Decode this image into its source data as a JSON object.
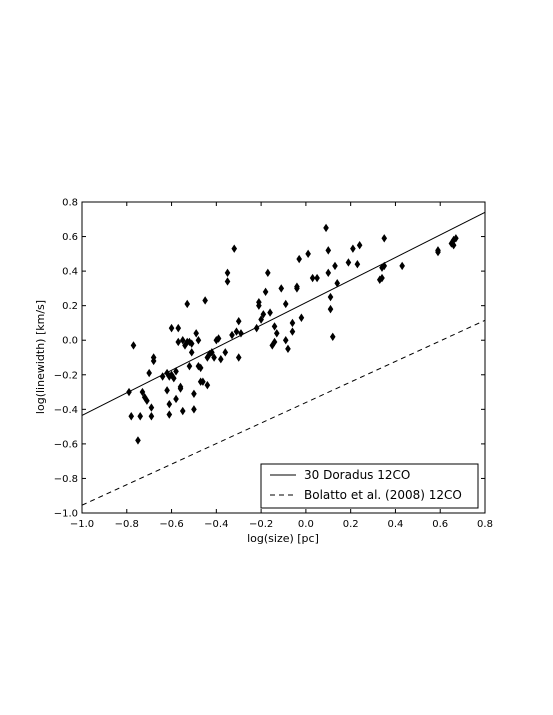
{
  "chart_data": {
    "type": "scatter",
    "title": "",
    "xlabel": "log(size) [pc]",
    "ylabel": "log(linewidth) [km/s]",
    "xlim": [
      -1.0,
      0.8
    ],
    "ylim": [
      -1.0,
      0.8
    ],
    "xticks": [
      "−1.0",
      "−0.8",
      "−0.6",
      "−0.4",
      "−0.2",
      "0.0",
      "0.2",
      "0.4",
      "0.6",
      "0.8"
    ],
    "yticks": [
      "−1.0",
      "−0.8",
      "−0.6",
      "−0.4",
      "−0.2",
      "0.0",
      "0.2",
      "0.4",
      "0.6",
      "0.8"
    ],
    "grid": false,
    "legend_position": "lower-right",
    "marker": "diamond",
    "color": "#000000",
    "points": [
      [
        -0.79,
        -0.3
      ],
      [
        -0.78,
        -0.44
      ],
      [
        -0.77,
        -0.03
      ],
      [
        -0.75,
        -0.58
      ],
      [
        -0.74,
        -0.44
      ],
      [
        -0.73,
        -0.3
      ],
      [
        -0.72,
        -0.33
      ],
      [
        -0.71,
        -0.35
      ],
      [
        -0.7,
        -0.19
      ],
      [
        -0.69,
        -0.39
      ],
      [
        -0.69,
        -0.44
      ],
      [
        -0.68,
        -0.1
      ],
      [
        -0.68,
        -0.12
      ],
      [
        -0.64,
        -0.21
      ],
      [
        -0.62,
        -0.29
      ],
      [
        -0.62,
        -0.19
      ],
      [
        -0.61,
        -0.21
      ],
      [
        -0.61,
        -0.43
      ],
      [
        -0.61,
        -0.37
      ],
      [
        -0.6,
        0.07
      ],
      [
        -0.6,
        -0.2
      ],
      [
        -0.59,
        -0.22
      ],
      [
        -0.58,
        -0.18
      ],
      [
        -0.58,
        -0.34
      ],
      [
        -0.57,
        0.07
      ],
      [
        -0.57,
        -0.01
      ],
      [
        -0.56,
        -0.28
      ],
      [
        -0.56,
        -0.27
      ],
      [
        -0.55,
        0.0
      ],
      [
        -0.55,
        -0.41
      ],
      [
        -0.54,
        -0.03
      ],
      [
        -0.53,
        0.21
      ],
      [
        -0.53,
        -0.01
      ],
      [
        -0.52,
        -0.01
      ],
      [
        -0.52,
        -0.15
      ],
      [
        -0.51,
        -0.02
      ],
      [
        -0.51,
        -0.07
      ],
      [
        -0.5,
        -0.31
      ],
      [
        -0.5,
        -0.4
      ],
      [
        -0.49,
        0.04
      ],
      [
        -0.48,
        0.0
      ],
      [
        -0.48,
        -0.15
      ],
      [
        -0.47,
        -0.24
      ],
      [
        -0.47,
        -0.16
      ],
      [
        -0.46,
        -0.24
      ],
      [
        -0.45,
        0.23
      ],
      [
        -0.44,
        -0.1
      ],
      [
        -0.44,
        -0.26
      ],
      [
        -0.43,
        -0.08
      ],
      [
        -0.42,
        -0.07
      ],
      [
        -0.41,
        -0.1
      ],
      [
        -0.4,
        0.0
      ],
      [
        -0.39,
        0.01
      ],
      [
        -0.38,
        -0.11
      ],
      [
        -0.36,
        -0.07
      ],
      [
        -0.35,
        0.39
      ],
      [
        -0.35,
        0.34
      ],
      [
        -0.33,
        0.03
      ],
      [
        -0.32,
        0.53
      ],
      [
        -0.31,
        0.05
      ],
      [
        -0.3,
        0.11
      ],
      [
        -0.3,
        -0.1
      ],
      [
        -0.29,
        0.04
      ],
      [
        -0.22,
        0.07
      ],
      [
        -0.21,
        0.22
      ],
      [
        -0.21,
        0.2
      ],
      [
        -0.2,
        0.12
      ],
      [
        -0.19,
        0.15
      ],
      [
        -0.18,
        0.28
      ],
      [
        -0.17,
        0.39
      ],
      [
        -0.16,
        0.16
      ],
      [
        -0.15,
        -0.03
      ],
      [
        -0.14,
        0.08
      ],
      [
        -0.14,
        -0.01
      ],
      [
        -0.13,
        0.04
      ],
      [
        -0.11,
        0.3
      ],
      [
        -0.09,
        0.21
      ],
      [
        -0.09,
        0.0
      ],
      [
        -0.08,
        -0.05
      ],
      [
        -0.06,
        0.05
      ],
      [
        -0.06,
        0.1
      ],
      [
        -0.04,
        0.3
      ],
      [
        -0.04,
        0.31
      ],
      [
        -0.03,
        0.47
      ],
      [
        -0.02,
        0.13
      ],
      [
        0.01,
        0.5
      ],
      [
        0.03,
        0.36
      ],
      [
        0.05,
        0.36
      ],
      [
        0.09,
        0.65
      ],
      [
        0.1,
        0.52
      ],
      [
        0.1,
        0.39
      ],
      [
        0.11,
        0.25
      ],
      [
        0.11,
        0.18
      ],
      [
        0.12,
        0.02
      ],
      [
        0.13,
        0.43
      ],
      [
        0.14,
        0.33
      ],
      [
        0.19,
        0.45
      ],
      [
        0.21,
        0.53
      ],
      [
        0.23,
        0.44
      ],
      [
        0.24,
        0.55
      ],
      [
        0.33,
        0.35
      ],
      [
        0.34,
        0.36
      ],
      [
        0.34,
        0.42
      ],
      [
        0.35,
        0.43
      ],
      [
        0.35,
        0.59
      ],
      [
        0.43,
        0.43
      ],
      [
        0.59,
        0.52
      ],
      [
        0.59,
        0.51
      ],
      [
        0.65,
        0.56
      ],
      [
        0.66,
        0.55
      ],
      [
        0.66,
        0.58
      ],
      [
        0.67,
        0.59
      ]
    ],
    "lines": [
      {
        "name": "30 Doradus 12CO",
        "style": "solid",
        "x": [
          -1.0,
          0.8
        ],
        "y": [
          -0.435,
          0.74
        ]
      },
      {
        "name": "Bolatto et al. (2008) 12CO",
        "style": "dashed",
        "x": [
          -1.0,
          0.8
        ],
        "y": [
          -0.955,
          0.115
        ]
      }
    ]
  }
}
